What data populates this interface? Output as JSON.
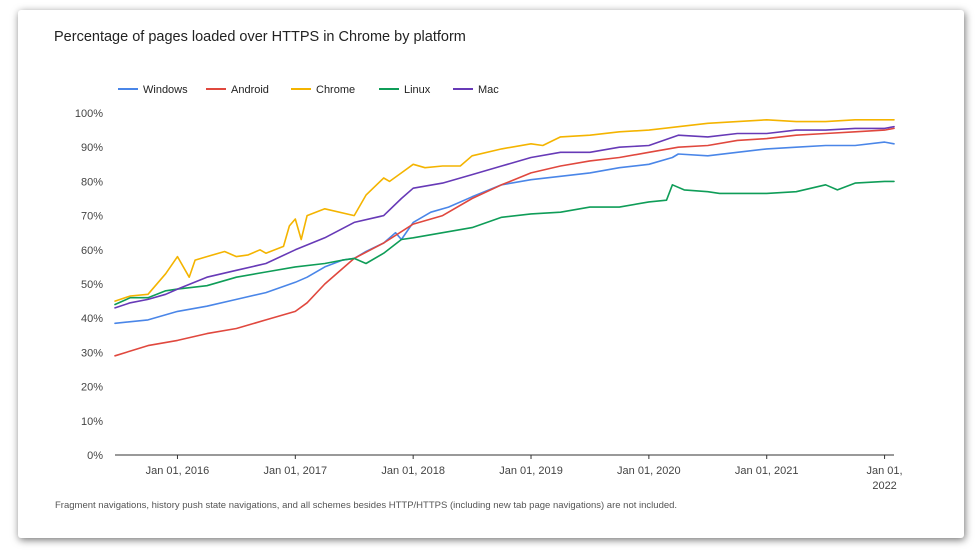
{
  "chart_data": {
    "type": "line",
    "title": "Percentage of pages loaded over HTTPS in Chrome by platform",
    "footnote": "Fragment navigations, history push state navigations, and all schemes besides HTTP/HTTPS (including new tab page navigations) are not included.",
    "xlabel": "",
    "ylabel": "",
    "ylim": [
      0,
      100
    ],
    "xlim": [
      2015.47,
      2022.08
    ],
    "grid": false,
    "legend_position": "top-left",
    "y_ticks": [
      {
        "value": 0,
        "label": "0%"
      },
      {
        "value": 10,
        "label": "10%"
      },
      {
        "value": 20,
        "label": "20%"
      },
      {
        "value": 30,
        "label": "30%"
      },
      {
        "value": 40,
        "label": "40%"
      },
      {
        "value": 50,
        "label": "50%"
      },
      {
        "value": 60,
        "label": "60%"
      },
      {
        "value": 70,
        "label": "70%"
      },
      {
        "value": 80,
        "label": "80%"
      },
      {
        "value": 90,
        "label": "90%"
      },
      {
        "value": 100,
        "label": "100%"
      }
    ],
    "x_ticks": [
      {
        "value": 2016,
        "label": "Jan 01, 2016"
      },
      {
        "value": 2017,
        "label": "Jan 01, 2017"
      },
      {
        "value": 2018,
        "label": "Jan 01, 2018"
      },
      {
        "value": 2019,
        "label": "Jan 01, 2019"
      },
      {
        "value": 2020,
        "label": "Jan 01, 2020"
      },
      {
        "value": 2021,
        "label": "Jan 01, 2021"
      },
      {
        "value": 2022,
        "label": "Jan 01,",
        "label2": "2022"
      }
    ],
    "series": [
      {
        "name": "Windows",
        "color": "#4a86e8",
        "x": [
          2015.47,
          2015.75,
          2016.0,
          2016.25,
          2016.5,
          2016.75,
          2017.0,
          2017.1,
          2017.25,
          2017.4,
          2017.5,
          2017.6,
          2017.75,
          2017.85,
          2017.9,
          2018.0,
          2018.15,
          2018.3,
          2018.5,
          2018.75,
          2019.0,
          2019.25,
          2019.5,
          2019.75,
          2020.0,
          2020.2,
          2020.25,
          2020.5,
          2020.75,
          2021.0,
          2021.25,
          2021.5,
          2021.75,
          2022.0,
          2022.08
        ],
        "y": [
          38.5,
          39.5,
          42,
          43.5,
          45.5,
          47.5,
          50.5,
          52,
          55,
          57,
          57.5,
          59.5,
          62,
          65,
          63,
          68,
          71,
          72.5,
          75.5,
          79,
          80.5,
          81.5,
          82.5,
          84,
          85,
          87,
          88,
          87.5,
          88.5,
          89.5,
          90,
          90.5,
          90.5,
          91.5,
          91
        ]
      },
      {
        "name": "Android",
        "color": "#e0483e",
        "x": [
          2015.47,
          2015.75,
          2016.0,
          2016.25,
          2016.5,
          2016.75,
          2017.0,
          2017.1,
          2017.25,
          2017.5,
          2017.75,
          2018.0,
          2018.25,
          2018.5,
          2018.75,
          2019.0,
          2019.25,
          2019.5,
          2019.75,
          2020.0,
          2020.25,
          2020.5,
          2020.75,
          2021.0,
          2021.25,
          2021.5,
          2021.75,
          2022.0,
          2022.08
        ],
        "y": [
          29,
          32,
          33.5,
          35.5,
          37,
          39.5,
          42,
          44.5,
          50,
          57.5,
          62,
          67.5,
          70,
          75,
          79,
          82.5,
          84.5,
          86,
          87,
          88.5,
          90,
          90.5,
          92,
          92.5,
          93.5,
          94,
          94.5,
          95,
          95.5
        ]
      },
      {
        "name": "Chrome",
        "color": "#f4b400",
        "x": [
          2015.47,
          2015.6,
          2015.75,
          2015.9,
          2016.0,
          2016.1,
          2016.15,
          2016.25,
          2016.4,
          2016.5,
          2016.6,
          2016.7,
          2016.75,
          2016.9,
          2016.95,
          2017.0,
          2017.05,
          2017.1,
          2017.25,
          2017.5,
          2017.6,
          2017.75,
          2017.8,
          2017.9,
          2018.0,
          2018.1,
          2018.25,
          2018.4,
          2018.5,
          2018.75,
          2019.0,
          2019.1,
          2019.25,
          2019.5,
          2019.75,
          2020.0,
          2020.25,
          2020.5,
          2020.75,
          2021.0,
          2021.25,
          2021.5,
          2021.75,
          2022.0,
          2022.08
        ],
        "y": [
          45,
          46.5,
          47,
          53,
          58,
          52,
          57,
          58,
          59.5,
          58,
          58.5,
          60,
          59,
          61,
          67,
          69,
          63,
          70,
          72,
          70,
          76,
          81,
          80,
          82.5,
          85,
          84,
          84.5,
          84.5,
          87.5,
          89.5,
          91,
          90.5,
          93,
          93.5,
          94.5,
          95,
          96,
          97,
          97.5,
          98,
          97.5,
          97.5,
          98,
          98,
          98
        ]
      },
      {
        "name": "Linux",
        "color": "#0f9d58",
        "x": [
          2015.47,
          2015.6,
          2015.75,
          2015.9,
          2016.0,
          2016.25,
          2016.5,
          2016.75,
          2017.0,
          2017.25,
          2017.4,
          2017.5,
          2017.6,
          2017.75,
          2017.9,
          2018.0,
          2018.25,
          2018.5,
          2018.75,
          2019.0,
          2019.25,
          2019.5,
          2019.75,
          2020.0,
          2020.15,
          2020.2,
          2020.3,
          2020.5,
          2020.6,
          2020.75,
          2021.0,
          2021.25,
          2021.5,
          2021.6,
          2021.75,
          2022.0,
          2022.08
        ],
        "y": [
          44,
          46,
          46,
          48,
          48.5,
          49.5,
          52,
          53.5,
          55,
          56,
          57,
          57.5,
          56,
          59,
          63,
          63.5,
          65,
          66.5,
          69.5,
          70.5,
          71,
          72.5,
          72.5,
          74,
          74.5,
          79,
          77.5,
          77,
          76.5,
          76.5,
          76.5,
          77,
          79,
          77.5,
          79.5,
          80,
          80
        ]
      },
      {
        "name": "Mac",
        "color": "#673ab7",
        "x": [
          2015.47,
          2015.6,
          2015.75,
          2015.9,
          2016.0,
          2016.25,
          2016.5,
          2016.75,
          2017.0,
          2017.25,
          2017.5,
          2017.75,
          2017.9,
          2018.0,
          2018.25,
          2018.5,
          2018.75,
          2019.0,
          2019.25,
          2019.5,
          2019.75,
          2020.0,
          2020.25,
          2020.5,
          2020.75,
          2021.0,
          2021.25,
          2021.5,
          2021.75,
          2022.0,
          2022.08
        ],
        "y": [
          43,
          44.5,
          45.5,
          47,
          48.5,
          52,
          54,
          56,
          60,
          63.5,
          68,
          70,
          75,
          78,
          79.5,
          82,
          84.5,
          87,
          88.5,
          88.5,
          90,
          90.5,
          93.5,
          93,
          94,
          94,
          95,
          95,
          95.5,
          95.5,
          96
        ]
      }
    ]
  }
}
